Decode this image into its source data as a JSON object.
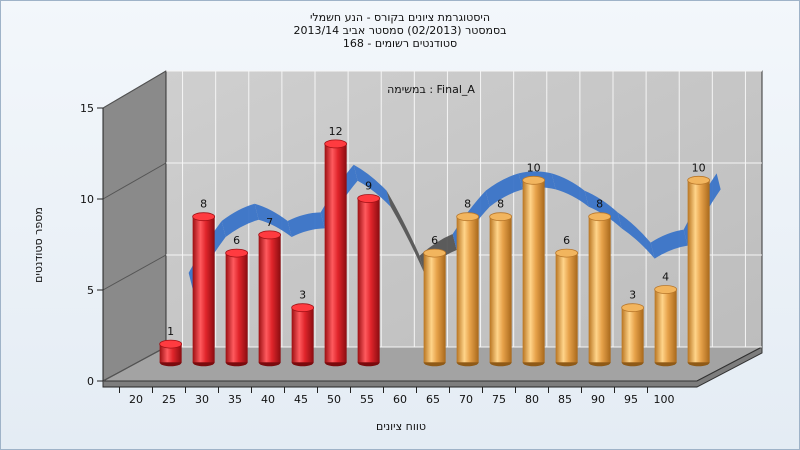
{
  "title_lines": [
    "היסטוגרמת ציונים בקורס - הנע חשמלי",
    "בסמסטר  (02/2013)  סמסטר אביב 2013/14",
    "סטודנטים רשומים - 168"
  ],
  "chart_data": {
    "type": "bar",
    "subtitle": "במשימה : Final_A",
    "xlabel": "טווח ציונים",
    "ylabel": "מספר סטודנטים",
    "ylim": [
      0,
      15
    ],
    "yticks": [
      0,
      5,
      10,
      15
    ],
    "categories": [
      20,
      25,
      30,
      35,
      40,
      45,
      50,
      55,
      60,
      65,
      70,
      75,
      80,
      85,
      90,
      95,
      100
    ],
    "values": [
      1,
      8,
      6,
      7,
      3,
      12,
      9,
      0,
      6,
      8,
      8,
      10,
      6,
      8,
      3,
      4,
      10
    ],
    "colors": {
      "fail": "#e0252b",
      "pass": "#e7a24a",
      "curve": "#3a74c8",
      "curve_dark": "#555555",
      "wall": "#8a8a8a",
      "plot_back": "#c8c8c8"
    },
    "fail_threshold": 55,
    "grid": true
  }
}
